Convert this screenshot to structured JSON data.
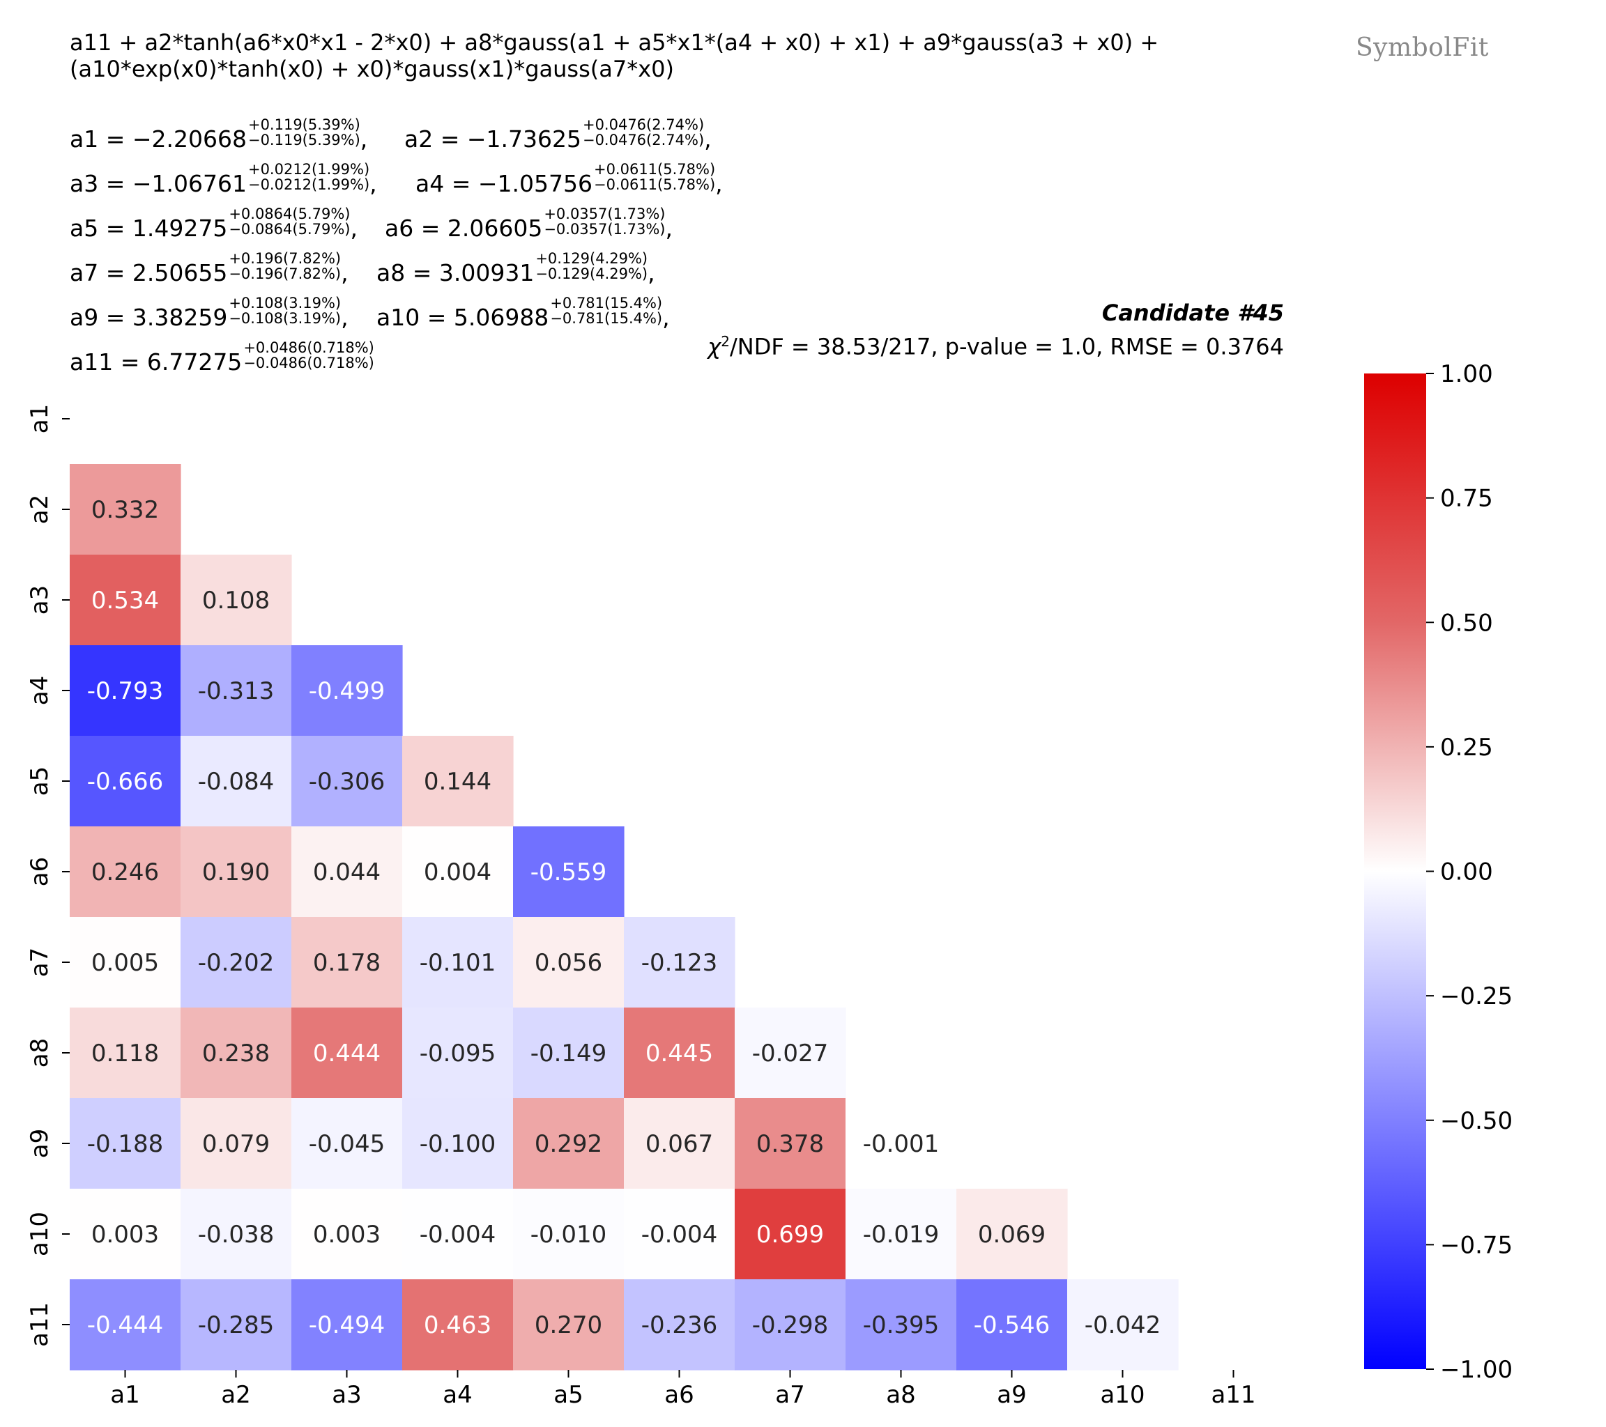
{
  "formula": {
    "line1": "a11 + a2*tanh(a6*x0*x1 - 2*x0) + a8*gauss(a1 + a5*x1*(a4 + x0) + x1) + a9*gauss(a3 + x0) +",
    "line2": "(a10*exp(x0)*tanh(x0) + x0)*gauss(x1)*gauss(a7*x0)"
  },
  "logo": "SymbolFit",
  "params": [
    {
      "name": "a1",
      "value": "−2.20668",
      "up": "+0.119(5.39%)",
      "down": "−0.119(5.39%)"
    },
    {
      "name": "a2",
      "value": "−1.73625",
      "up": "+0.0476(2.74%)",
      "down": "−0.0476(2.74%)"
    },
    {
      "name": "a3",
      "value": "−1.06761",
      "up": "+0.0212(1.99%)",
      "down": "−0.0212(1.99%)"
    },
    {
      "name": "a4",
      "value": "−1.05756",
      "up": "+0.0611(5.78%)",
      "down": "−0.0611(5.78%)"
    },
    {
      "name": "a5",
      "value": "1.49275",
      "up": "+0.0864(5.79%)",
      "down": "−0.0864(5.79%)"
    },
    {
      "name": "a6",
      "value": "2.06605",
      "up": "+0.0357(1.73%)",
      "down": "−0.0357(1.73%)"
    },
    {
      "name": "a7",
      "value": "2.50655",
      "up": "+0.196(7.82%)",
      "down": "−0.196(7.82%)"
    },
    {
      "name": "a8",
      "value": "3.00931",
      "up": "+0.129(4.29%)",
      "down": "−0.129(4.29%)"
    },
    {
      "name": "a9",
      "value": "3.38259",
      "up": "+0.108(3.19%)",
      "down": "−0.108(3.19%)"
    },
    {
      "name": "a10",
      "value": "5.06988",
      "up": "+0.781(15.4%)",
      "down": "−0.781(15.4%)"
    },
    {
      "name": "a11",
      "value": "6.77275",
      "up": "+0.0486(0.718%)",
      "down": "−0.0486(0.718%)"
    }
  ],
  "candidate": "Candidate #45",
  "stats": {
    "chi": "χ",
    "exp": "2",
    "rest": "/NDF = 38.53/217, p-value = 1.0, RMSE = 0.3764"
  },
  "chart_data": {
    "type": "heatmap",
    "title": "",
    "x_labels": [
      "a1",
      "a2",
      "a3",
      "a4",
      "a5",
      "a6",
      "a7",
      "a8",
      "a9",
      "a10",
      "a11"
    ],
    "y_labels": [
      "a1",
      "a2",
      "a3",
      "a4",
      "a5",
      "a6",
      "a7",
      "a8",
      "a9",
      "a10",
      "a11"
    ],
    "lower_triangle": [
      [],
      [
        0.332
      ],
      [
        0.534,
        0.108
      ],
      [
        -0.793,
        -0.313,
        -0.499
      ],
      [
        -0.666,
        -0.084,
        -0.306,
        0.144
      ],
      [
        0.246,
        0.19,
        0.044,
        0.004,
        -0.559
      ],
      [
        0.005,
        -0.202,
        0.178,
        -0.101,
        0.056,
        -0.123
      ],
      [
        0.118,
        0.238,
        0.444,
        -0.095,
        -0.149,
        0.445,
        -0.027
      ],
      [
        -0.188,
        0.079,
        -0.045,
        -0.1,
        0.292,
        0.067,
        0.378,
        -0.001
      ],
      [
        0.003,
        -0.038,
        0.003,
        -0.004,
        -0.01,
        -0.004,
        0.699,
        -0.019,
        0.069
      ],
      [
        -0.444,
        -0.285,
        -0.494,
        0.463,
        0.27,
        -0.236,
        -0.298,
        -0.395,
        -0.546,
        -0.042
      ]
    ],
    "colormap": "bwr",
    "vmin": -1.0,
    "vmax": 1.0,
    "colorbar_ticks": [
      "1.00",
      "0.75",
      "0.50",
      "0.25",
      "0.00",
      "−0.25",
      "−0.50",
      "−0.75",
      "−1.00"
    ],
    "colorbar_values": [
      1.0,
      0.75,
      0.5,
      0.25,
      0.0,
      -0.25,
      -0.5,
      -0.75,
      -1.0
    ]
  }
}
